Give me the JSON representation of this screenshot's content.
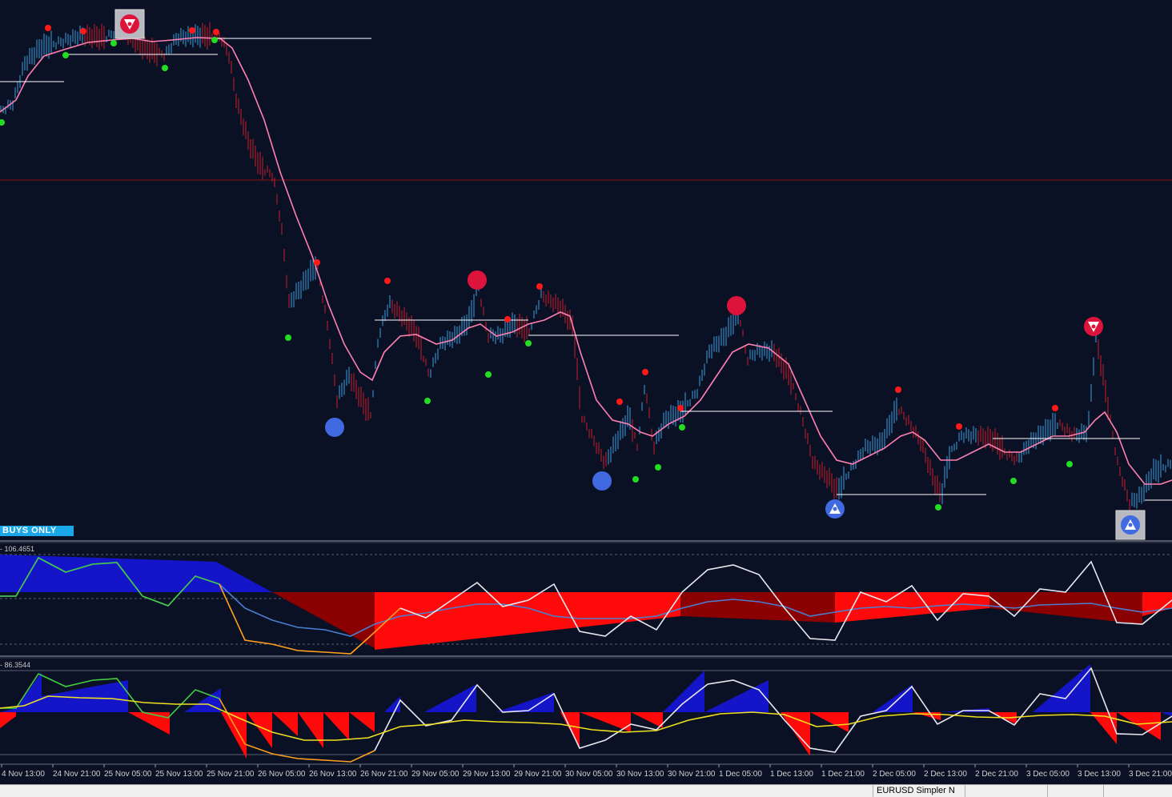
{
  "signals": {
    "buys_only": "BUYS ONLY"
  },
  "indicator1": {
    "label": "- 106.4651"
  },
  "indicator2": {
    "label": "- 86.3544"
  },
  "time_axis": [
    "4 Nov 13:00",
    "24 Nov 21:00",
    "25 Nov 05:00",
    "25 Nov 13:00",
    "25 Nov 21:00",
    "26 Nov 05:00",
    "26 Nov 13:00",
    "26 Nov 21:00",
    "29 Nov 05:00",
    "29 Nov 13:00",
    "29 Nov 21:00",
    "30 Nov 05:00",
    "30 Nov 13:00",
    "30 Nov 21:00",
    "1 Dec 05:00",
    "1 Dec 13:00",
    "1 Dec 21:00",
    "2 Dec 05:00",
    "2 Dec 13:00",
    "2 Dec 21:00",
    "3 Dec 05:00",
    "3 Dec 13:00",
    "3 Dec 21:00"
  ],
  "statusbar": {
    "symbol_label": "EURUSD Simpler N"
  },
  "colors": {
    "background": "#0b1124",
    "bull_bar": "#3b9ee0",
    "bear_bar": "#c81e2a",
    "ma_line": "#ff7fb0",
    "swing_high": "#ff1a1a",
    "swing_low": "#22dd22",
    "level_line": "#ffffff",
    "buy_signal": "#4169e1",
    "sell_signal": "#dc143c"
  }
}
